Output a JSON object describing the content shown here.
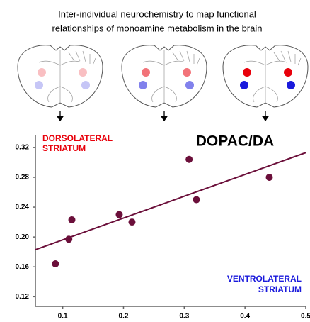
{
  "chart_data": {
    "type": "scatter",
    "title": [
      "Inter-individual neurochemistry to map functional",
      "relationships of monoamine metabolism in the brain"
    ],
    "annotations": [
      {
        "lines": [
          "DORSOLATERAL",
          "STRIATUM"
        ],
        "color": "#e8000b"
      },
      {
        "lines": [
          "DOPAC/DA"
        ],
        "color": "#000000"
      },
      {
        "lines": [
          "VENTROLATERAL",
          "STRIATUM"
        ],
        "color": "#1a1adc"
      }
    ],
    "series": [
      {
        "color": "#6b0f3a",
        "x": [
          0.088,
          0.11,
          0.115,
          0.193,
          0.214,
          0.308,
          0.32,
          0.44
        ],
        "values": [
          0.164,
          0.197,
          0.223,
          0.23,
          0.22,
          0.304,
          0.25,
          0.28
        ]
      }
    ],
    "fit_line": {
      "x": [
        0.055,
        0.5
      ],
      "values": [
        0.183,
        0.313
      ],
      "color": "#6b0f3a"
    },
    "xlim": [
      0.055,
      0.5
    ],
    "ylim": [
      0.107,
      0.337
    ],
    "xticks": [
      0.1,
      0.2,
      0.3,
      0.4,
      0.5
    ],
    "yticks": [
      0.12,
      0.16,
      {
        "value": 0.2,
        "label": "0.20"
      },
      0.24,
      0.28,
      0.32
    ],
    "grid": false
  }
}
